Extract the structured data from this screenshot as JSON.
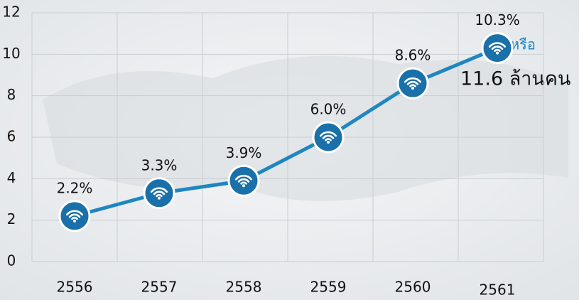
{
  "chart_data": {
    "type": "line",
    "categories": [
      "2556",
      "2557",
      "2558",
      "2559",
      "2560",
      "2561"
    ],
    "series": [
      {
        "color": "#1f86c1",
        "values": [
          2.2,
          3.3,
          3.9,
          6.0,
          8.6,
          10.3
        ],
        "value_labels": [
          "2.2%",
          "3.3%",
          "3.9%",
          "6.0%",
          "8.6%",
          "10.3%"
        ]
      }
    ],
    "ylim": [
      0,
      12
    ],
    "yticks": [
      0,
      2,
      4,
      6,
      8,
      10,
      12
    ],
    "grid": true,
    "annotations": [
      "หรือ",
      "11.6 ล้านคน"
    ]
  }
}
